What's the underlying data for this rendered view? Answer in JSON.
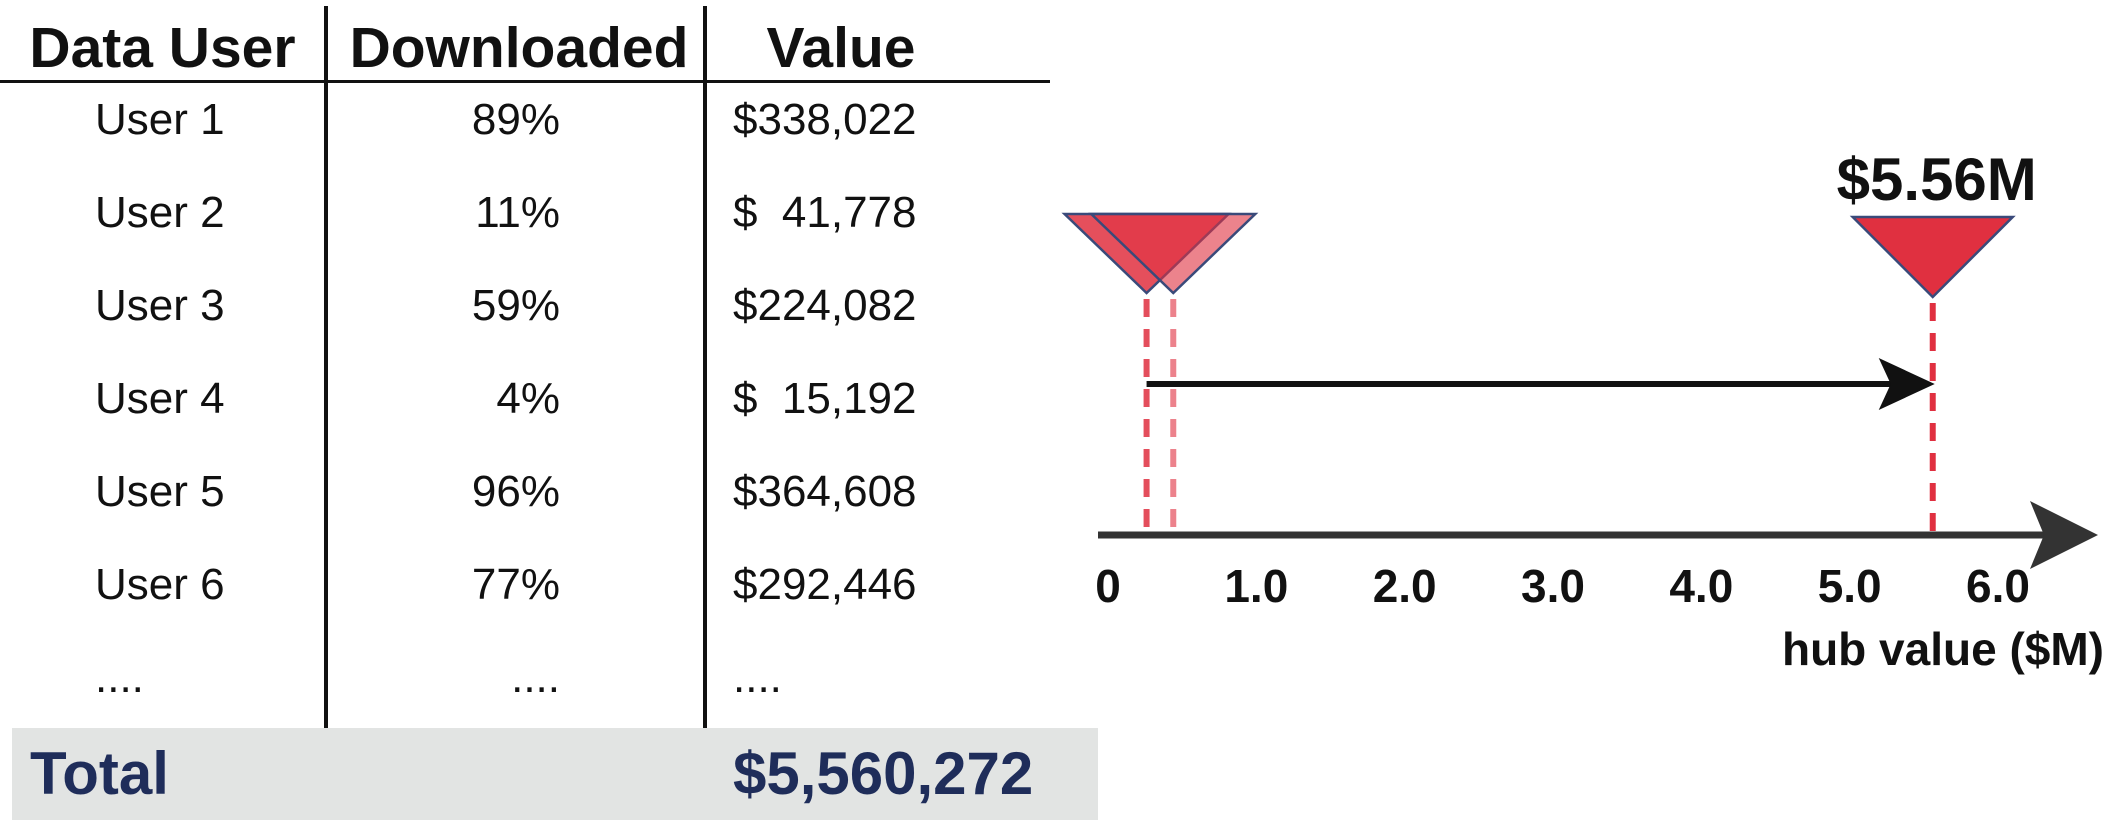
{
  "table": {
    "headers": {
      "user": "Data User",
      "downloaded": "Downloaded",
      "value": "Value"
    },
    "rows": [
      {
        "user": "User 1",
        "downloaded": "89%",
        "value": "$338,022"
      },
      {
        "user": "User 2",
        "downloaded": "11%",
        "value": "$  41,778"
      },
      {
        "user": "User 3",
        "downloaded": "59%",
        "value": "$224,082"
      },
      {
        "user": "User 4",
        "downloaded": "4%",
        "value": "$  15,192"
      },
      {
        "user": "User 5",
        "downloaded": "96%",
        "value": "$364,608"
      },
      {
        "user": "User 6",
        "downloaded": "77%",
        "value": "$292,446"
      },
      {
        "user": "....",
        "downloaded": "....",
        "value": "...."
      }
    ],
    "total": {
      "label": "Total",
      "value": "$5,560,272"
    }
  },
  "diagram": {
    "axis": {
      "min": 0,
      "max": 6.0,
      "ticks": [
        {
          "value": 0,
          "label": "0"
        },
        {
          "value": 1.0,
          "label": "1.0"
        },
        {
          "value": 2.0,
          "label": "2.0"
        },
        {
          "value": 3.0,
          "label": "3.0"
        },
        {
          "value": 4.0,
          "label": "4.0"
        },
        {
          "value": 5.0,
          "label": "5.0"
        },
        {
          "value": 6.0,
          "label": "6.0"
        }
      ],
      "label": "hub value ($M)"
    },
    "markers": [
      {
        "name": "user-marker-a",
        "value": 0.26,
        "opacity": 0.85
      },
      {
        "name": "user-marker-b",
        "value": 0.44,
        "opacity": 0.6
      },
      {
        "name": "hub-marker",
        "value": 5.56,
        "opacity": 1.0
      }
    ],
    "hub_label": "$5.56M",
    "colors": {
      "marker": "#e03040",
      "marker_stroke": "#3a4a7a",
      "axis": "#333333",
      "total_text": "#1f2d5a",
      "total_band": "#e2e4e3"
    }
  }
}
